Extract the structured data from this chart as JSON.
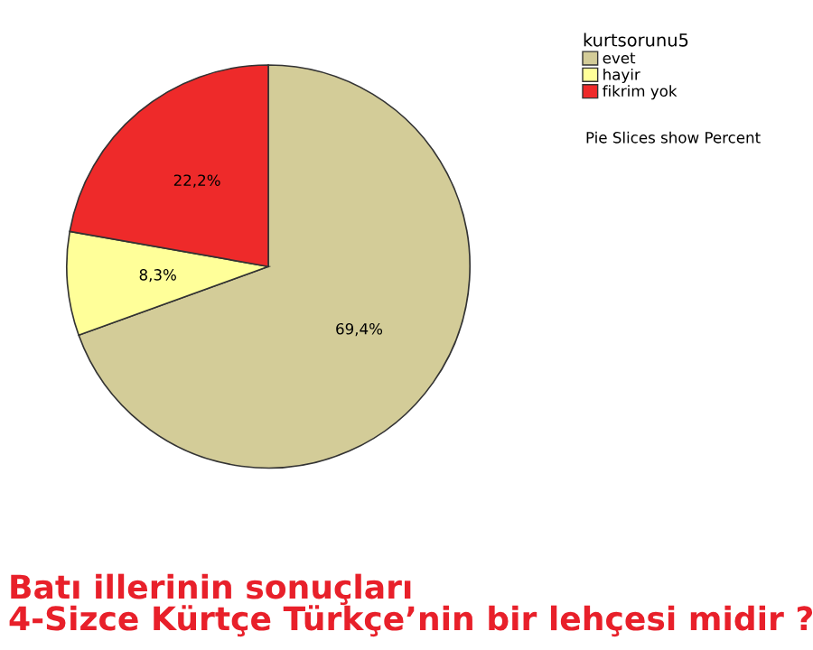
{
  "chart_data": {
    "type": "pie",
    "title": "Batı illerinin sonuçları\n4-Sizce Kürtçe Türkçe’nin bir lehçesi midir ?",
    "categories": [
      "evet",
      "hayir",
      "fikrim yok"
    ],
    "values": [
      69.4,
      8.3,
      22.2
    ],
    "colors": [
      "#d3cc98",
      "#ffff99",
      "#ee2a2a"
    ],
    "value_labels": [
      "69,4%",
      "8,3%",
      "22,2%"
    ],
    "legend": "top right",
    "legend_title": "kurtsorunu5",
    "annotations": [
      "Pie Slices show Percent"
    ]
  }
}
